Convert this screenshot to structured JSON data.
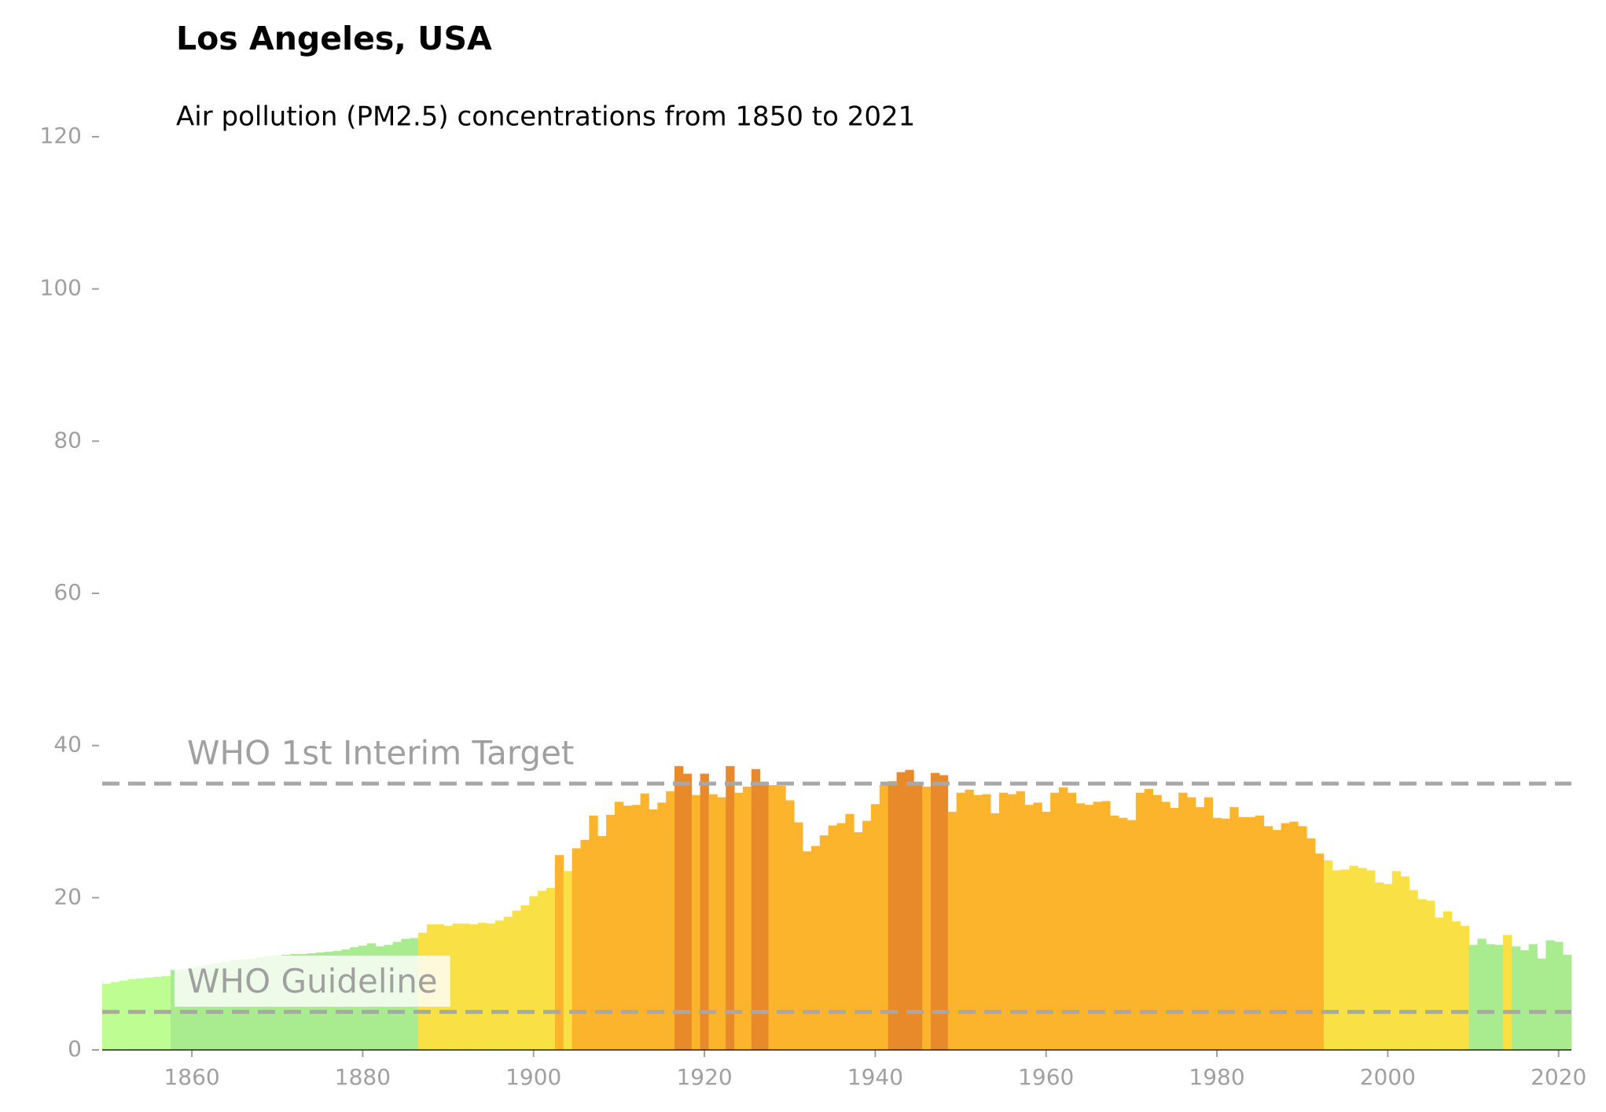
{
  "chart_data": {
    "type": "bar",
    "title": "Los Angeles, USA",
    "subtitle": "Air pollution (PM2.5) concentrations from 1850 to 2021",
    "x": [
      1850,
      1851,
      1852,
      1853,
      1854,
      1855,
      1856,
      1857,
      1858,
      1859,
      1860,
      1861,
      1862,
      1863,
      1864,
      1865,
      1866,
      1867,
      1868,
      1869,
      1870,
      1871,
      1872,
      1873,
      1874,
      1875,
      1876,
      1877,
      1878,
      1879,
      1880,
      1881,
      1882,
      1883,
      1884,
      1885,
      1886,
      1887,
      1888,
      1889,
      1890,
      1891,
      1892,
      1893,
      1894,
      1895,
      1896,
      1897,
      1898,
      1899,
      1900,
      1901,
      1902,
      1903,
      1904,
      1905,
      1906,
      1907,
      1908,
      1909,
      1910,
      1911,
      1912,
      1913,
      1914,
      1915,
      1916,
      1917,
      1918,
      1919,
      1920,
      1921,
      1922,
      1923,
      1924,
      1925,
      1926,
      1927,
      1928,
      1929,
      1930,
      1931,
      1932,
      1933,
      1934,
      1935,
      1936,
      1937,
      1938,
      1939,
      1940,
      1941,
      1942,
      1943,
      1944,
      1945,
      1946,
      1947,
      1948,
      1949,
      1950,
      1951,
      1952,
      1953,
      1954,
      1955,
      1956,
      1957,
      1958,
      1959,
      1960,
      1961,
      1962,
      1963,
      1964,
      1965,
      1966,
      1967,
      1968,
      1969,
      1970,
      1971,
      1972,
      1973,
      1974,
      1975,
      1976,
      1977,
      1978,
      1979,
      1980,
      1981,
      1982,
      1983,
      1984,
      1985,
      1986,
      1987,
      1988,
      1989,
      1990,
      1991,
      1992,
      1993,
      1994,
      1995,
      1996,
      1997,
      1998,
      1999,
      2000,
      2001,
      2002,
      2003,
      2004,
      2005,
      2006,
      2007,
      2008,
      2009,
      2010,
      2011,
      2012,
      2013,
      2014,
      2015,
      2016,
      2017,
      2018,
      2019,
      2020,
      2021
    ],
    "values": [
      8.7,
      8.9,
      9.1,
      9.3,
      9.4,
      9.5,
      9.6,
      9.7,
      10.5,
      10.6,
      10.8,
      11.0,
      11.2,
      11.4,
      11.6,
      11.8,
      11.9,
      12.0,
      12.2,
      12.3,
      12.4,
      12.5,
      12.6,
      12.6,
      12.7,
      12.8,
      12.9,
      13.0,
      13.2,
      13.5,
      13.7,
      14.0,
      13.6,
      13.8,
      14.2,
      14.6,
      14.7,
      15.4,
      16.5,
      16.5,
      16.3,
      16.6,
      16.6,
      16.5,
      16.7,
      16.6,
      17.0,
      17.5,
      18.3,
      19.0,
      20.2,
      20.9,
      21.3,
      25.6,
      23.5,
      26.5,
      27.6,
      30.8,
      28.1,
      30.9,
      32.6,
      32.1,
      32.2,
      33.7,
      31.6,
      32.5,
      34.0,
      37.3,
      36.3,
      33.5,
      36.3,
      33.6,
      33.2,
      37.3,
      33.8,
      34.6,
      36.9,
      35.2,
      34.8,
      34.7,
      32.8,
      29.9,
      26.1,
      26.8,
      28.2,
      29.5,
      29.8,
      31.0,
      28.6,
      30.1,
      32.3,
      34.8,
      35.3,
      36.5,
      36.8,
      35.2,
      34.6,
      36.4,
      36.1,
      31.3,
      33.8,
      34.2,
      33.5,
      33.6,
      31.1,
      33.8,
      33.6,
      34.0,
      32.2,
      32.5,
      31.3,
      33.8,
      34.5,
      33.8,
      32.4,
      32.2,
      32.6,
      32.7,
      30.8,
      30.5,
      30.2,
      33.8,
      34.3,
      33.5,
      32.6,
      31.8,
      33.8,
      33.2,
      31.9,
      33.2,
      30.5,
      30.4,
      31.9,
      30.6,
      30.6,
      30.8,
      29.4,
      28.9,
      29.8,
      30.0,
      29.4,
      27.8,
      25.8,
      24.9,
      23.6,
      23.7,
      24.2,
      23.9,
      23.6,
      22.0,
      21.8,
      23.5,
      22.8,
      21.0,
      19.8,
      19.6,
      17.4,
      18.2,
      16.9,
      16.3,
      13.8,
      14.6,
      13.9,
      13.8,
      15.1,
      13.6,
      13.1,
      13.9,
      12.0,
      14.4,
      14.2,
      12.5
    ],
    "color_scale": {
      "thresholds": [
        10,
        15,
        25,
        35
      ],
      "colors": [
        "#bdfd91",
        "#a8ec8f",
        "#f8e045",
        "#fbb42c",
        "#e8892a"
      ]
    },
    "reference_lines": [
      {
        "value": 35,
        "label": "WHO 1st Interim Target"
      },
      {
        "value": 5,
        "label": "WHO Guideline"
      }
    ],
    "xlim": [
      1849.5,
      2021.5
    ],
    "xticks": [
      1860,
      1880,
      1900,
      1920,
      1940,
      1960,
      1980,
      2000,
      2020
    ],
    "ylim": [
      0,
      120
    ],
    "yticks": [
      0,
      20,
      40,
      60,
      80,
      100,
      120
    ]
  }
}
